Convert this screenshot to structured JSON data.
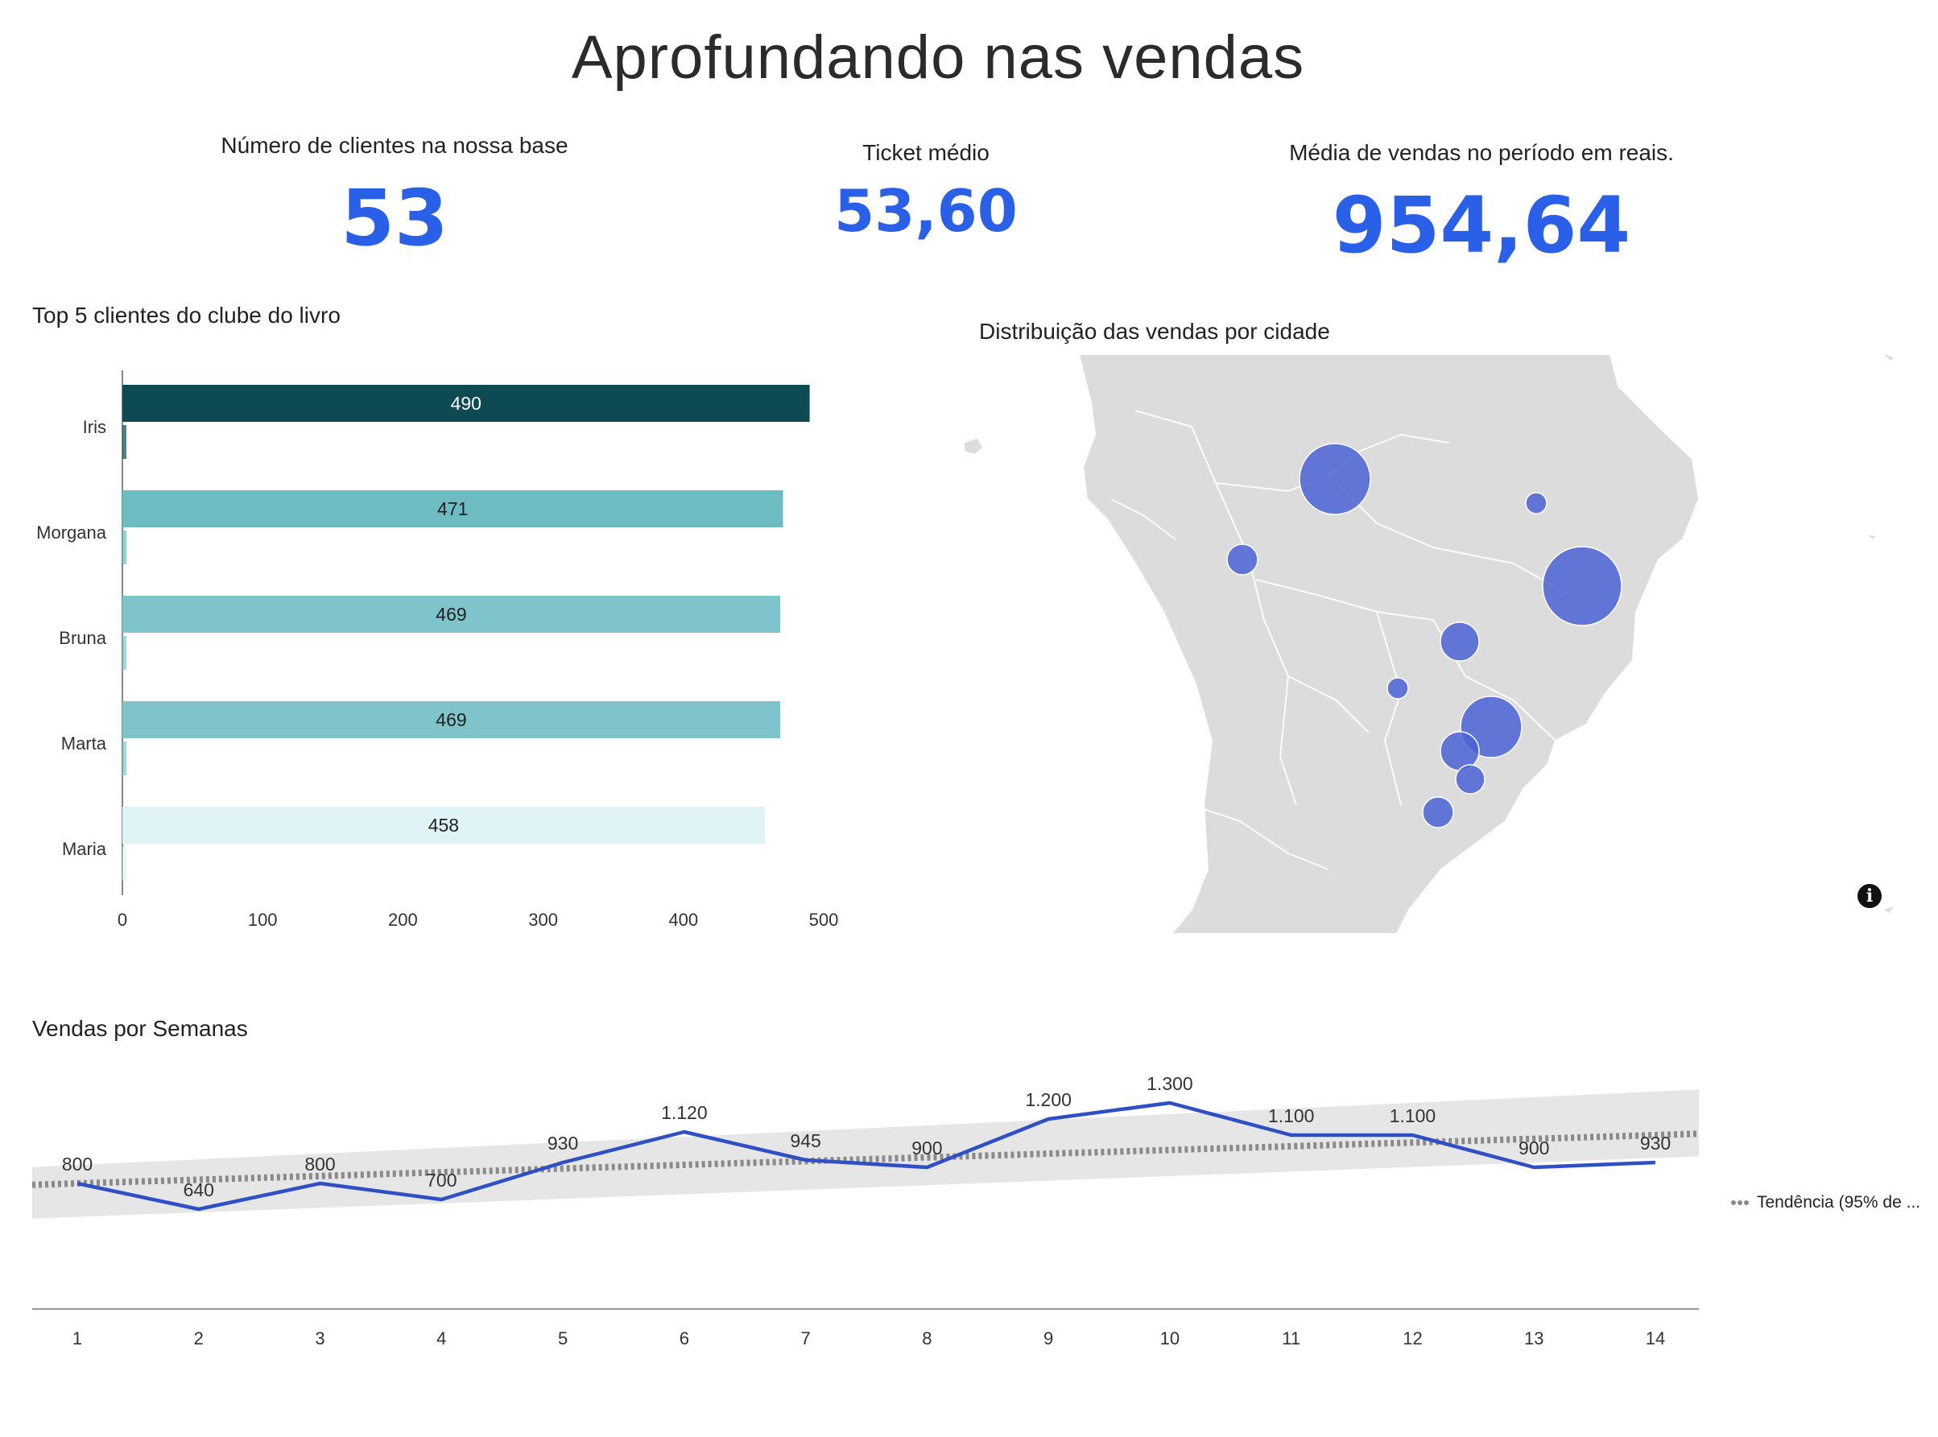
{
  "title": "Aprofundando nas vendas",
  "kpis": {
    "clients": {
      "label": "Número de clientes na nossa base",
      "value": "53"
    },
    "ticket": {
      "label": "Ticket médio",
      "value": "53,60"
    },
    "avg_sales": {
      "label": "Média de vendas no período em reais.",
      "value": "954,64"
    }
  },
  "map": {
    "title": "Distribuição das vendas por cidade",
    "info_icon": "info-icon"
  },
  "chart_data": [
    {
      "type": "bar",
      "orientation": "horizontal",
      "title": "Top 5 clientes do clube do livro",
      "categories": [
        "Iris",
        "Morgana",
        "Bruna",
        "Marta",
        "Maria"
      ],
      "values": [
        490,
        471,
        469,
        469,
        458
      ],
      "data_labels": [
        "490",
        "471",
        "469",
        "469",
        "458"
      ],
      "colors": [
        "#0e4a52",
        "#6cbcc2",
        "#7fc4cb",
        "#7fc4cb",
        "#e0f4f8"
      ],
      "xlim": [
        0,
        500
      ],
      "xticks": [
        0,
        100,
        200,
        300,
        400,
        500
      ],
      "xlabel": "",
      "ylabel": ""
    },
    {
      "type": "line",
      "title": "Vendas por Semanas",
      "x": [
        1,
        2,
        3,
        4,
        5,
        6,
        7,
        8,
        9,
        10,
        11,
        12,
        13,
        14
      ],
      "series": [
        {
          "values": [
            800,
            640,
            800,
            700,
            930,
            1120,
            945,
            900,
            1200,
            1300,
            1100,
            1100,
            900,
            930
          ],
          "labels": [
            "800",
            "640",
            "800",
            "700",
            "930",
            "1.120",
            "945",
            "900",
            "1.200",
            "1.300",
            "1.100",
            "1.100",
            "900",
            "930"
          ],
          "color": "#2f4fc4"
        }
      ],
      "trend": {
        "name": "Tendência (95% de ...",
        "start": 800,
        "end": 1100,
        "color": "#8a8a8a",
        "band_color": "#e6e6e6"
      },
      "ylim": [
        0,
        1500
      ],
      "grid": false,
      "legend": "right",
      "xlabel": "",
      "ylabel": ""
    }
  ]
}
